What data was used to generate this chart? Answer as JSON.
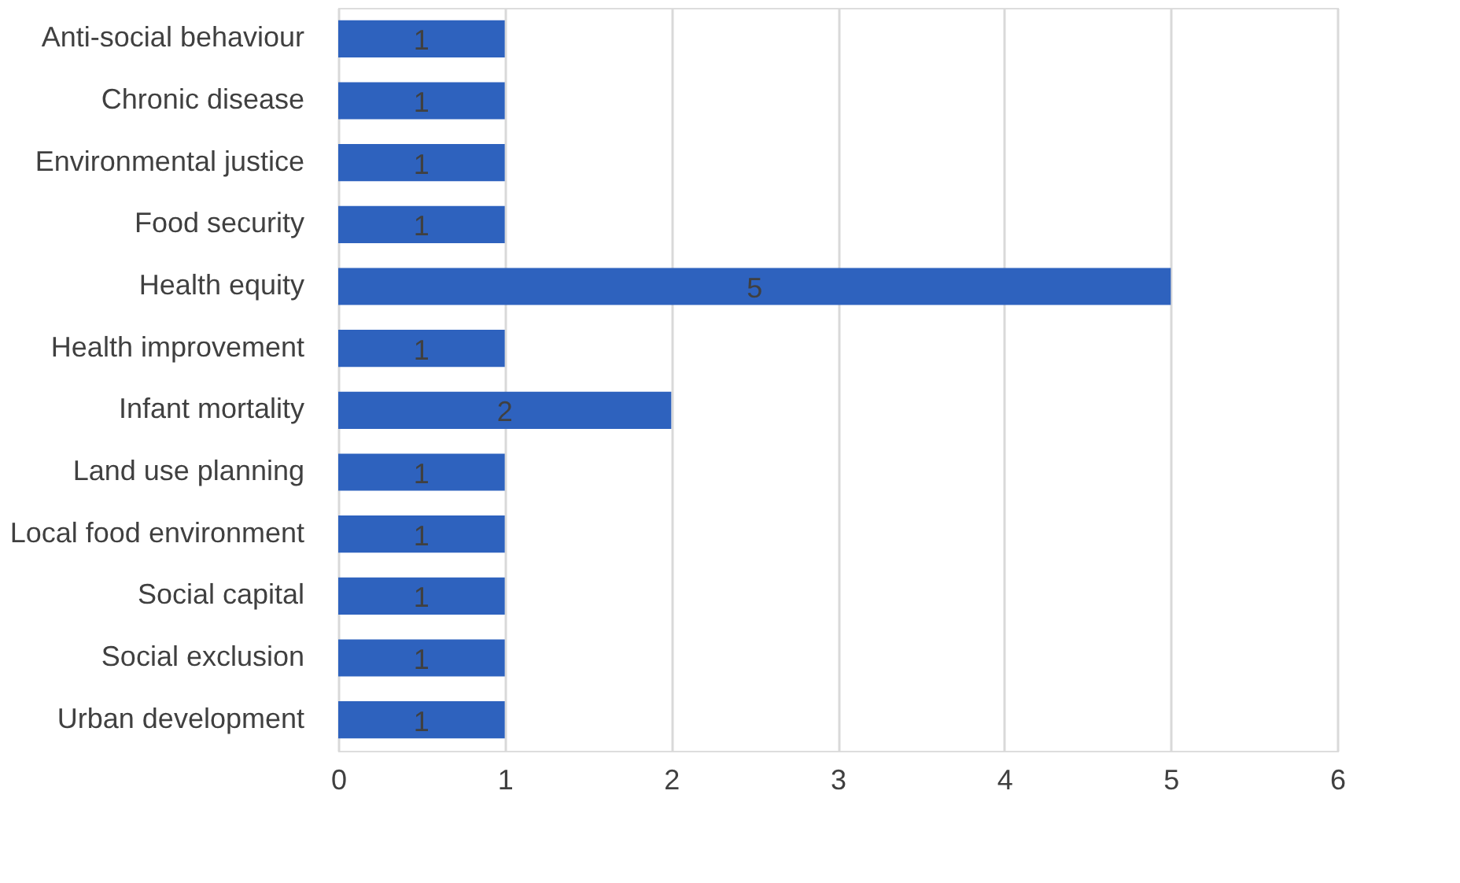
{
  "chart_data": {
    "type": "bar",
    "orientation": "horizontal",
    "categories": [
      "Anti-social behaviour",
      "Chronic disease",
      "Environmental justice",
      "Food security",
      "Health equity",
      "Health improvement",
      "Infant mortality",
      "Land use planning",
      "Local food environment",
      "Social capital",
      "Social exclusion",
      "Urban development"
    ],
    "values": [
      1,
      1,
      1,
      1,
      5,
      1,
      2,
      1,
      1,
      1,
      1,
      1
    ],
    "color": "#2e62be",
    "xlim": [
      0,
      6
    ],
    "xticks": [
      0,
      1,
      2,
      3,
      4,
      5,
      6
    ],
    "grid": "x",
    "data_labels": true
  }
}
